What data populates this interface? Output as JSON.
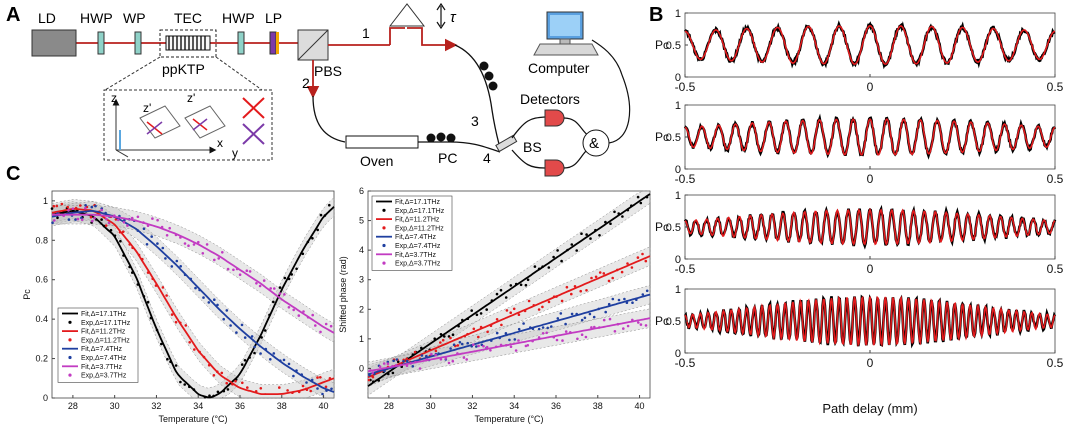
{
  "panels": {
    "A": "A",
    "B": "B",
    "C": "C"
  },
  "setup": {
    "LD": "LD",
    "HWP1": "HWP",
    "WP": "WP",
    "TEC": "TEC",
    "HWP2": "HWP",
    "LP": "LP",
    "ppKTP": "ppKTP",
    "PBS": "PBS",
    "path1": "1",
    "path2": "2",
    "path3": "3",
    "path4": "4",
    "tau": "τ",
    "computer": "Computer",
    "detectors": "Detectors",
    "BS": "BS",
    "and": "&",
    "oven": "Oven",
    "PC": "PC",
    "inset_z": "z",
    "inset_z1": "z'",
    "inset_z2": "z'",
    "inset_x": "x",
    "inset_y": "y"
  },
  "colors": {
    "s17": "#000000",
    "s11": "#e31a1c",
    "s7": "#1f3fa0",
    "s3": "#c23bc2",
    "bexp": "#000000",
    "bfit": "#e31a1c"
  },
  "chart_data": [
    {
      "id": "C-left",
      "type": "line",
      "xlabel": "Temperature (°C)",
      "ylabel": "Pc",
      "xlim": [
        27,
        40.5
      ],
      "ylim": [
        0,
        1.05
      ],
      "xticks": [
        "28",
        "30",
        "32",
        "34",
        "36",
        "38",
        "40"
      ],
      "yticks": [
        "0",
        "0.2",
        "0.4",
        "0.6",
        "0.8",
        "1"
      ],
      "legend": [
        {
          "label": "Fit,Δ=17.1THz",
          "kind": "line",
          "series": "s17"
        },
        {
          "label": "Exp,Δ=17.1THz",
          "kind": "dot",
          "series": "s17"
        },
        {
          "label": "Fit,Δ=11.2THz",
          "kind": "line",
          "series": "s11"
        },
        {
          "label": "Exp,Δ=11.2THz",
          "kind": "dot",
          "series": "s11"
        },
        {
          "label": "Fit,Δ=7.4THz",
          "kind": "line",
          "series": "s7"
        },
        {
          "label": "Exp,Δ=7.4THz",
          "kind": "dot",
          "series": "s7"
        },
        {
          "label": "Fit,Δ=3.7THz",
          "kind": "line",
          "series": "s3"
        },
        {
          "label": "Exp,Δ=3.7THz",
          "kind": "dot",
          "series": "s3"
        }
      ],
      "series": [
        {
          "id": "s17",
          "name": "Δ=17.1THz",
          "x": [
            27,
            28,
            29,
            30,
            31,
            32,
            33,
            34,
            34.5,
            35,
            36,
            37,
            38,
            39,
            40,
            40.5
          ],
          "y": [
            0.93,
            0.95,
            0.92,
            0.82,
            0.62,
            0.35,
            0.12,
            0.02,
            0.0,
            0.02,
            0.12,
            0.32,
            0.55,
            0.75,
            0.92,
            0.97
          ]
        },
        {
          "id": "s11",
          "name": "Δ=11.2THz",
          "x": [
            27,
            28,
            29,
            30,
            31,
            32,
            33,
            34,
            35,
            36,
            37,
            38,
            39,
            40,
            40.5
          ],
          "y": [
            0.94,
            0.96,
            0.95,
            0.88,
            0.75,
            0.58,
            0.4,
            0.24,
            0.12,
            0.05,
            0.02,
            0.02,
            0.04,
            0.08,
            0.1
          ]
        },
        {
          "id": "s7",
          "name": "Δ=7.4THz",
          "x": [
            27,
            28,
            29,
            30,
            31,
            32,
            33,
            34,
            35,
            36,
            37,
            38,
            39,
            40,
            40.5
          ],
          "y": [
            0.92,
            0.94,
            0.95,
            0.92,
            0.86,
            0.77,
            0.67,
            0.56,
            0.45,
            0.35,
            0.26,
            0.18,
            0.11,
            0.05,
            0.03
          ]
        },
        {
          "id": "s3",
          "name": "Δ=3.7THz",
          "x": [
            27,
            28,
            29,
            30,
            31,
            32,
            33,
            34,
            35,
            36,
            37,
            38,
            39,
            40,
            40.5
          ],
          "y": [
            0.93,
            0.93,
            0.93,
            0.92,
            0.9,
            0.87,
            0.83,
            0.78,
            0.72,
            0.65,
            0.58,
            0.5,
            0.43,
            0.36,
            0.33
          ]
        }
      ]
    },
    {
      "id": "C-right",
      "type": "line",
      "xlabel": "Temperature (°C)",
      "ylabel": "Shifted phase (rad)",
      "xlim": [
        27,
        40.5
      ],
      "ylim": [
        -1,
        6
      ],
      "xticks": [
        "28",
        "30",
        "32",
        "34",
        "36",
        "38",
        "40"
      ],
      "yticks": [
        "0",
        "1",
        "2",
        "3",
        "4",
        "5",
        "6"
      ],
      "legend": [
        {
          "label": "Fit,Δ=17.1THz",
          "kind": "line",
          "series": "s17"
        },
        {
          "label": "Exp,Δ=17.1THz",
          "kind": "dot",
          "series": "s17"
        },
        {
          "label": "Fit,Δ=11.2THz",
          "kind": "line",
          "series": "s11"
        },
        {
          "label": "Exp,Δ=11.2THz",
          "kind": "dot",
          "series": "s11"
        },
        {
          "label": "Fit,Δ=7.4THz",
          "kind": "line",
          "series": "s7"
        },
        {
          "label": "Exp,Δ=7.4THz",
          "kind": "dot",
          "series": "s7"
        },
        {
          "label": "Fit,Δ=3.7THz",
          "kind": "line",
          "series": "s3"
        },
        {
          "label": "Exp,Δ=3.7THz",
          "kind": "dot",
          "series": "s3"
        }
      ],
      "series": [
        {
          "id": "s17",
          "name": "Δ=17.1THz",
          "x": [
            27,
            40.5
          ],
          "y": [
            -0.6,
            5.9
          ]
        },
        {
          "id": "s11",
          "name": "Δ=11.2THz",
          "x": [
            27,
            40.5
          ],
          "y": [
            -0.3,
            3.8
          ]
        },
        {
          "id": "s7",
          "name": "Δ=7.4THz",
          "x": [
            27,
            40.5
          ],
          "y": [
            -0.2,
            2.5
          ]
        },
        {
          "id": "s3",
          "name": "Δ=3.7THz",
          "x": [
            27,
            40.5
          ],
          "y": [
            -0.1,
            1.7
          ]
        }
      ]
    },
    {
      "id": "B-rows",
      "type": "line",
      "xlabel": "Path delay (mm)",
      "ylabel": "Pc",
      "xlim": [
        -0.5,
        0.5
      ],
      "ylim": [
        0,
        1
      ],
      "xticks": [
        "-0.5",
        "0",
        "0.5"
      ],
      "yticks": [
        "0",
        "0.5",
        "1"
      ],
      "rows": [
        {
          "cycles": 12,
          "amplitude": 0.3,
          "envelope_width": 0.6,
          "mean": 0.5
        },
        {
          "cycles": 22,
          "amplitude": 0.28,
          "envelope_width": 0.45,
          "mean": 0.5
        },
        {
          "cycles": 34,
          "amplitude": 0.27,
          "envelope_width": 0.35,
          "mean": 0.5
        },
        {
          "cycles": 48,
          "amplitude": 0.38,
          "envelope_width": 0.3,
          "mean": 0.5
        }
      ]
    }
  ]
}
